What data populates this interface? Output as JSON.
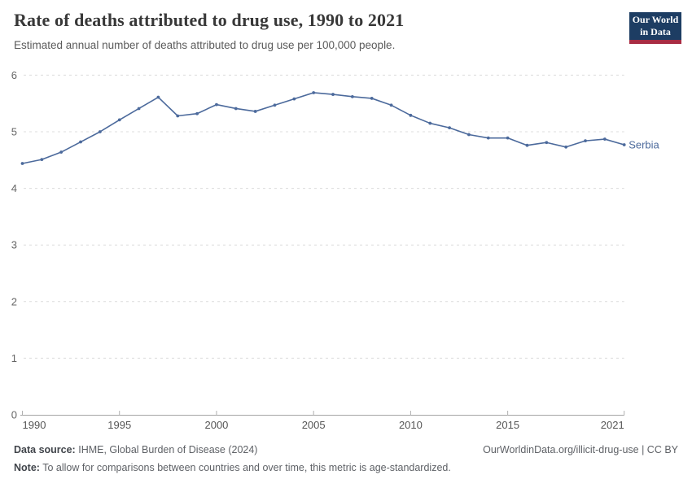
{
  "header": {
    "title": "Rate of deaths attributed to drug use, 1990 to 2021",
    "subtitle": "Estimated annual number of deaths attributed to drug use per 100,000 people.",
    "logo": {
      "line1": "Our World",
      "line2": "in Data",
      "bg_color": "#1d3d63",
      "accent_color": "#a82c43"
    }
  },
  "chart_data": {
    "type": "line",
    "title": "Rate of deaths attributed to drug use, 1990 to 2021",
    "xlabel": "",
    "ylabel": "",
    "xlim": [
      1990,
      2021
    ],
    "ylim": [
      0,
      6
    ],
    "x_ticks": [
      1990,
      1995,
      2000,
      2005,
      2010,
      2015,
      2021
    ],
    "y_ticks": [
      0,
      1,
      2,
      3,
      4,
      5,
      6
    ],
    "grid": "horizontal-dashed",
    "legend_position": "end-of-line-label",
    "colors": {
      "grid": "#dcdcdc",
      "axis": "#a5a5a5",
      "tick": "#b0b0b0",
      "y_tick_label": "#666666",
      "x_tick_label": "#555555"
    },
    "series": [
      {
        "name": "Serbia",
        "color": "#4c6a9c",
        "x": [
          1990,
          1991,
          1992,
          1993,
          1994,
          1995,
          1996,
          1997,
          1998,
          1999,
          2000,
          2001,
          2002,
          2003,
          2004,
          2005,
          2006,
          2007,
          2008,
          2009,
          2010,
          2011,
          2012,
          2013,
          2014,
          2015,
          2016,
          2017,
          2018,
          2019,
          2020,
          2021
        ],
        "values": [
          4.44,
          4.51,
          4.64,
          4.82,
          5.0,
          5.21,
          5.41,
          5.61,
          5.28,
          5.32,
          5.48,
          5.41,
          5.36,
          5.47,
          5.58,
          5.69,
          5.66,
          5.62,
          5.59,
          5.47,
          5.29,
          5.15,
          5.07,
          4.95,
          4.89,
          4.89,
          4.76,
          4.81,
          4.73,
          4.84,
          4.87,
          4.77
        ]
      }
    ]
  },
  "footer": {
    "data_source_label": "Data source:",
    "data_source": "IHME, Global Burden of Disease (2024)",
    "note_label": "Note:",
    "note": "To allow for comparisons between countries and over time, this metric is age-standardized.",
    "link": "OurWorldinData.org/illicit-drug-use | CC BY"
  }
}
